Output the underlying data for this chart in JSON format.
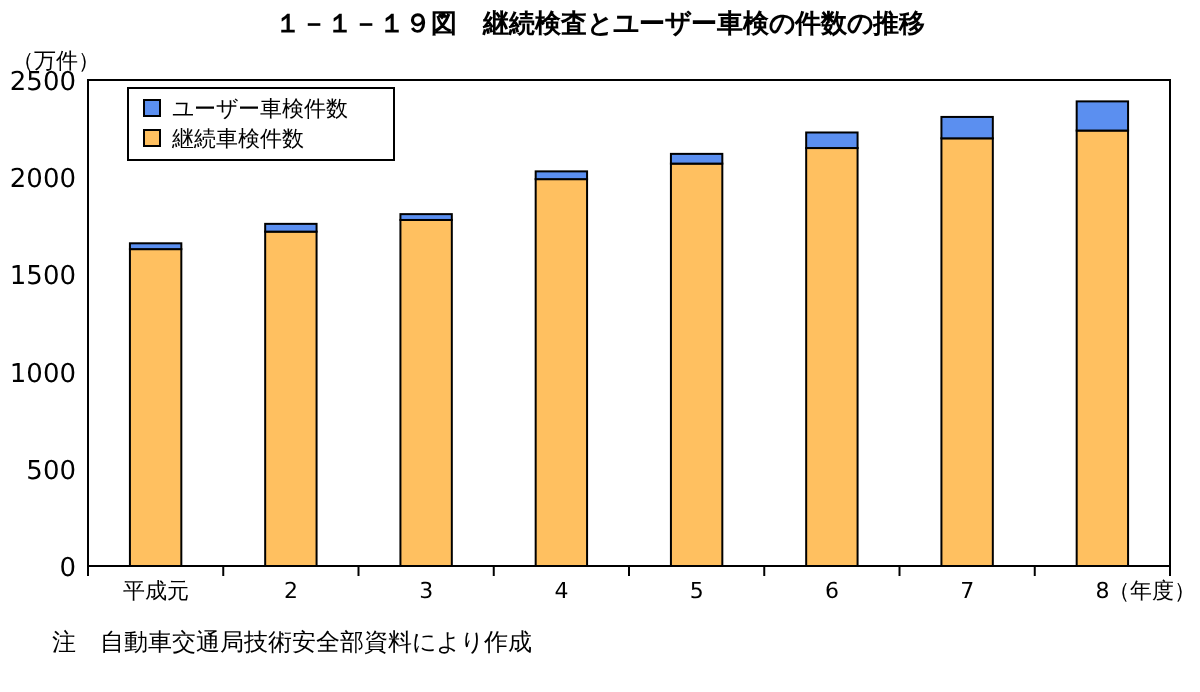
{
  "chart_data": {
    "type": "bar",
    "stacked": true,
    "title": "１－１－１９図　継続検査とユーザー車検の件数の推移",
    "ylabel": "（万件）",
    "xlabel": "（年度）",
    "categories": [
      "平成元",
      "2",
      "3",
      "4",
      "5",
      "6",
      "7",
      "8"
    ],
    "series": [
      {
        "name": "継続車検件数",
        "color": "#ffc060",
        "values": [
          1630,
          1720,
          1780,
          1990,
          2070,
          2150,
          2200,
          2240
        ]
      },
      {
        "name": "ユーザー車検件数",
        "color": "#5b8ff0",
        "values": [
          30,
          40,
          30,
          40,
          50,
          80,
          110,
          150
        ]
      }
    ],
    "ylim": [
      0,
      2500
    ],
    "yticks": [
      0,
      500,
      1000,
      1500,
      2000,
      2500
    ],
    "grid": false,
    "legend": "top left",
    "annotations": [
      "注　自動車交通局技術安全部資料により作成"
    ]
  }
}
